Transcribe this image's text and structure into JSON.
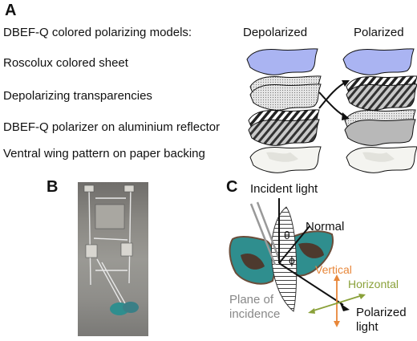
{
  "panels": {
    "a": "A",
    "b": "B",
    "c": "C"
  },
  "panel_a": {
    "title": "DBEF-Q colored polarizing models:",
    "columns": {
      "depolarized": "Depolarized",
      "polarized": "Polarized"
    },
    "rows": [
      "Roscolux colored sheet",
      "Depolarizing transparencies",
      "DBEF-Q polarizer on aluminium reflector",
      "Ventral wing pattern on paper backing"
    ],
    "colors": {
      "roscolux": "#aab4f2",
      "transparency": "#d6d6d6",
      "polarizer": "#b8b8b8",
      "paper": "#f4f4f0"
    }
  },
  "panel_c": {
    "incident_light": "Incident light",
    "normal": "Normal",
    "theta": "θ",
    "phi": "ϕ",
    "vertical": "Vertical",
    "horizontal": "Horizontal",
    "plane_line1": "Plane of",
    "plane_line2": "incidence",
    "polarized_line1": "Polarized",
    "polarized_line2": "light",
    "colors": {
      "vertical": "#e8873a",
      "horizontal": "#8aa13a",
      "plane": "#888888",
      "wing_teal": "#2f8e8e",
      "wing_brown": "#7a5a44"
    }
  }
}
